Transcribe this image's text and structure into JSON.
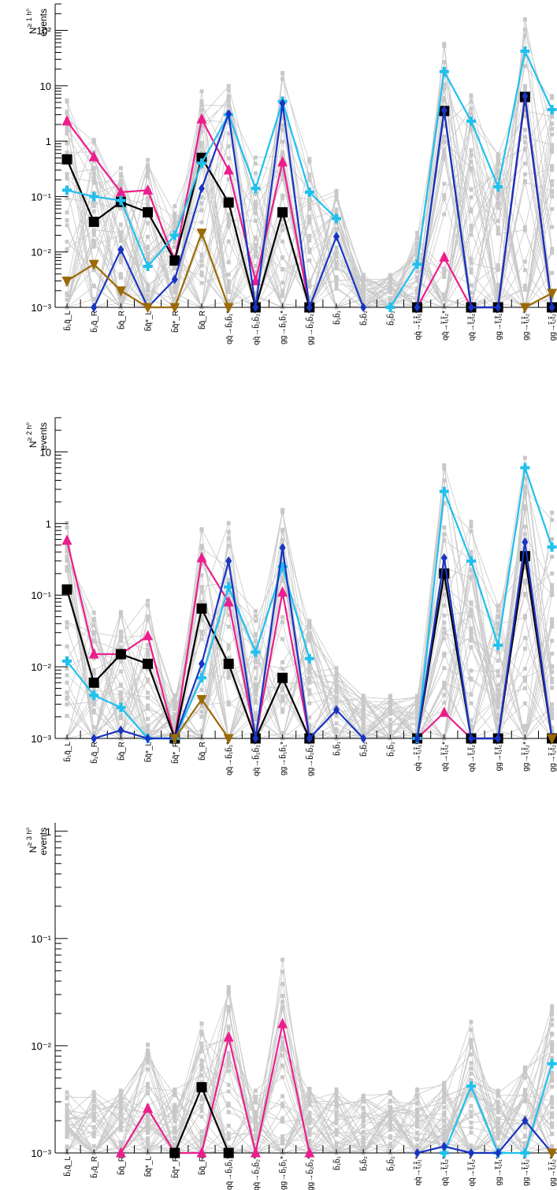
{
  "chart_data": [
    {
      "type": "line",
      "ylabel": "N_events^{≥ 1 h⁰}",
      "ylabel_main": "N",
      "ylabel_sup": "≥ 1 h⁰",
      "ylabel_sub": "events",
      "yscale": "log",
      "ylim": [
        0.001,
        300
      ],
      "yticks": [
        {
          "v": 0.001,
          "label": "10⁻³"
        },
        {
          "v": 0.01,
          "label": "10⁻²"
        },
        {
          "v": 0.1,
          "label": "10⁻¹"
        },
        {
          "v": 1,
          "label": "1"
        },
        {
          "v": 10,
          "label": "10"
        },
        {
          "v": 100,
          "label": "10²"
        }
      ],
      "grid": false,
      "categories": [
        "b̃₁q̃_L",
        "b̃₂q̃_R",
        "b̃q̃_R",
        "b̃q̃*_L",
        "b̃q̃*_R",
        "b̃q̃_R",
        "qq̄→b̃₁b̃₁*",
        "qq̄→b̃₂b̃₂*",
        "gg→b̃₁b̃₁*",
        "gg→b̃₂b̃₂*",
        "b̃₁b̃₁",
        "b̃₂b̃₂",
        "b̃₂b̃₂",
        "qq̄→t̃₁t̃₁*",
        "qq̄→t̃₁t̃₂*",
        "qq̄→t̃₂t̃₂*",
        "gg→t̃₁t̃₁*",
        "gg→t̃₁t̃₂*",
        "gg→t̃₂t̃₂*"
      ],
      "series": [
        {
          "color": "#ec1e8c",
          "marker": "triangle-up",
          "values": [
            2.3,
            0.52,
            0.12,
            0.13,
            0.007,
            2.5,
            0.3,
            0.003,
            0.42,
            0.001,
            null,
            null,
            null,
            0.001,
            0.008,
            0.001,
            0.001,
            6.0,
            0.001
          ]
        },
        {
          "color": "#000000",
          "marker": "square",
          "values": [
            0.47,
            0.035,
            0.08,
            0.052,
            0.007,
            0.5,
            0.078,
            0.001,
            0.052,
            0.001,
            null,
            null,
            null,
            0.001,
            3.5,
            0.001,
            0.001,
            6.3,
            0.001
          ]
        },
        {
          "color": "#1fc0ee",
          "marker": "cross",
          "values": [
            0.13,
            0.1,
            0.085,
            0.0055,
            0.02,
            0.4,
            3.0,
            0.14,
            5.2,
            0.12,
            0.04,
            null,
            0.001,
            0.006,
            18.0,
            2.3,
            0.15,
            42.0,
            3.7
          ]
        },
        {
          "color": "#1834c2",
          "marker": "diamond",
          "values": [
            null,
            0.001,
            0.011,
            0.001,
            0.0032,
            0.14,
            3.1,
            0.001,
            4.8,
            0.001,
            0.019,
            0.001,
            null,
            0.001,
            3.6,
            0.001,
            0.001,
            6.5,
            0.001
          ]
        },
        {
          "color": "#9b6a06",
          "marker": "triangle-down",
          "values": [
            0.003,
            0.006,
            0.002,
            0.001,
            0.001,
            0.022,
            0.001,
            null,
            null,
            null,
            null,
            null,
            null,
            null,
            null,
            null,
            null,
            0.001,
            0.0018
          ]
        }
      ]
    },
    {
      "type": "line",
      "ylabel": "N_events^{≥ 2 h⁰}",
      "ylabel_main": "N",
      "ylabel_sup": "≥ 2 h⁰",
      "ylabel_sub": "events",
      "yscale": "log",
      "ylim": [
        0.001,
        30
      ],
      "yticks": [
        {
          "v": 0.001,
          "label": "10⁻³"
        },
        {
          "v": 0.01,
          "label": "10⁻²"
        },
        {
          "v": 0.1,
          "label": "10⁻¹"
        },
        {
          "v": 1,
          "label": "1"
        },
        {
          "v": 10,
          "label": "10"
        }
      ],
      "grid": false,
      "categories": [
        "b̃₁q̃_L",
        "b̃₂q̃_R",
        "b̃q̃_R",
        "b̃q̃*_L",
        "b̃q̃*_R",
        "b̃q̃_R",
        "qq̄→b̃₁b̃₁*",
        "qq̄→b̃₂b̃₂*",
        "gg→b̃₁b̃₁*",
        "gg→b̃₂b̃₂*",
        "b̃₁b̃₁",
        "b̃₂b̃₂",
        "b̃₂b̃₂",
        "qq̄→t̃₁t̃₁*",
        "qq̄→t̃₁t̃₂*",
        "qq̄→t̃₂t̃₂*",
        "gg→t̃₁t̃₁*",
        "gg→t̃₁t̃₂*",
        "gg→t̃₂t̃₂*"
      ],
      "series": [
        {
          "color": "#ec1e8c",
          "marker": "triangle-up",
          "values": [
            0.58,
            0.015,
            0.015,
            0.027,
            0.001,
            0.33,
            0.08,
            0.001,
            0.11,
            0.001,
            null,
            null,
            null,
            0.001,
            0.0023,
            0.001,
            0.001,
            0.35,
            0.001
          ]
        },
        {
          "color": "#000000",
          "marker": "square",
          "values": [
            0.12,
            0.006,
            0.015,
            0.011,
            0.001,
            0.065,
            0.011,
            0.001,
            0.007,
            0.001,
            null,
            null,
            null,
            0.001,
            0.2,
            0.001,
            0.001,
            0.35,
            0.001
          ]
        },
        {
          "color": "#1fc0ee",
          "marker": "cross",
          "values": [
            0.012,
            0.004,
            0.0027,
            0.001,
            0.001,
            0.007,
            0.13,
            0.016,
            0.25,
            0.013,
            null,
            null,
            null,
            0.001,
            2.8,
            0.3,
            0.02,
            6.0,
            0.47
          ]
        },
        {
          "color": "#1834c2",
          "marker": "diamond",
          "values": [
            null,
            0.001,
            0.0013,
            0.001,
            0.001,
            0.011,
            0.3,
            0.001,
            0.46,
            0.001,
            0.0025,
            0.001,
            null,
            0.001,
            0.33,
            0.001,
            0.001,
            0.55,
            0.001
          ]
        },
        {
          "color": "#9b6a06",
          "marker": "triangle-down",
          "values": [
            null,
            null,
            null,
            null,
            0.001,
            0.0035,
            0.001,
            null,
            null,
            null,
            null,
            null,
            null,
            null,
            null,
            null,
            null,
            null,
            0.001
          ]
        }
      ]
    },
    {
      "type": "line",
      "ylabel": "N_events^{≥ 3 h⁰}",
      "ylabel_main": "N",
      "ylabel_sup": "≥ 3 h⁰",
      "ylabel_sub": "events",
      "yscale": "log",
      "ylim": [
        0.001,
        1.2
      ],
      "yticks": [
        {
          "v": 0.001,
          "label": "10⁻³"
        },
        {
          "v": 0.01,
          "label": "10⁻²"
        },
        {
          "v": 0.1,
          "label": "10⁻¹"
        },
        {
          "v": 1,
          "label": "1"
        }
      ],
      "grid": false,
      "categories": [
        "b̃₁q̃_L",
        "b̃₂q̃_R",
        "b̃q̃_R",
        "b̃q̃*_L",
        "b̃q̃*_R",
        "b̃q̃_R",
        "qq̄→b̃₁b̃₁*",
        "qq̄→b̃₂b̃₂*",
        "gg→b̃₁b̃₁*",
        "gg→b̃₂b̃₂*",
        "b̃₁b̃₁",
        "b̃₂b̃₂",
        "b̃₂b̃₂",
        "qq̄→t̃₁t̃₁*",
        "qq̄→t̃₁t̃₂*",
        "qq̄→t̃₂t̃₂*",
        "gg→t̃₁t̃₁*",
        "gg→t̃₁t̃₂*",
        "gg→t̃₂t̃₂*"
      ],
      "series": [
        {
          "color": "#ec1e8c",
          "marker": "triangle-up",
          "values": [
            null,
            null,
            0.001,
            0.0026,
            0.001,
            0.001,
            0.012,
            0.001,
            0.016,
            0.001,
            null,
            null,
            null,
            null,
            null,
            null,
            null,
            null,
            null
          ]
        },
        {
          "color": "#000000",
          "marker": "square",
          "values": [
            null,
            null,
            null,
            null,
            0.001,
            0.0041,
            0.001,
            null,
            null,
            null,
            null,
            null,
            null,
            null,
            null,
            null,
            null,
            null,
            null
          ]
        },
        {
          "color": "#1fc0ee",
          "marker": "cross",
          "values": [
            null,
            null,
            null,
            null,
            null,
            null,
            null,
            null,
            null,
            null,
            null,
            null,
            null,
            null,
            0.001,
            0.0042,
            0.001,
            0.001,
            0.0068
          ]
        },
        {
          "color": "#1834c2",
          "marker": "diamond",
          "values": [
            null,
            null,
            null,
            null,
            null,
            null,
            null,
            null,
            null,
            null,
            null,
            null,
            null,
            0.001,
            0.00115,
            0.001,
            0.001,
            0.002,
            0.001
          ]
        },
        {
          "color": "#9b6a06",
          "marker": "triangle-down",
          "values": [
            null,
            null,
            null,
            null,
            null,
            null,
            null,
            null,
            null,
            null,
            null,
            null,
            null,
            null,
            null,
            null,
            null,
            null,
            0.001
          ]
        }
      ]
    }
  ]
}
